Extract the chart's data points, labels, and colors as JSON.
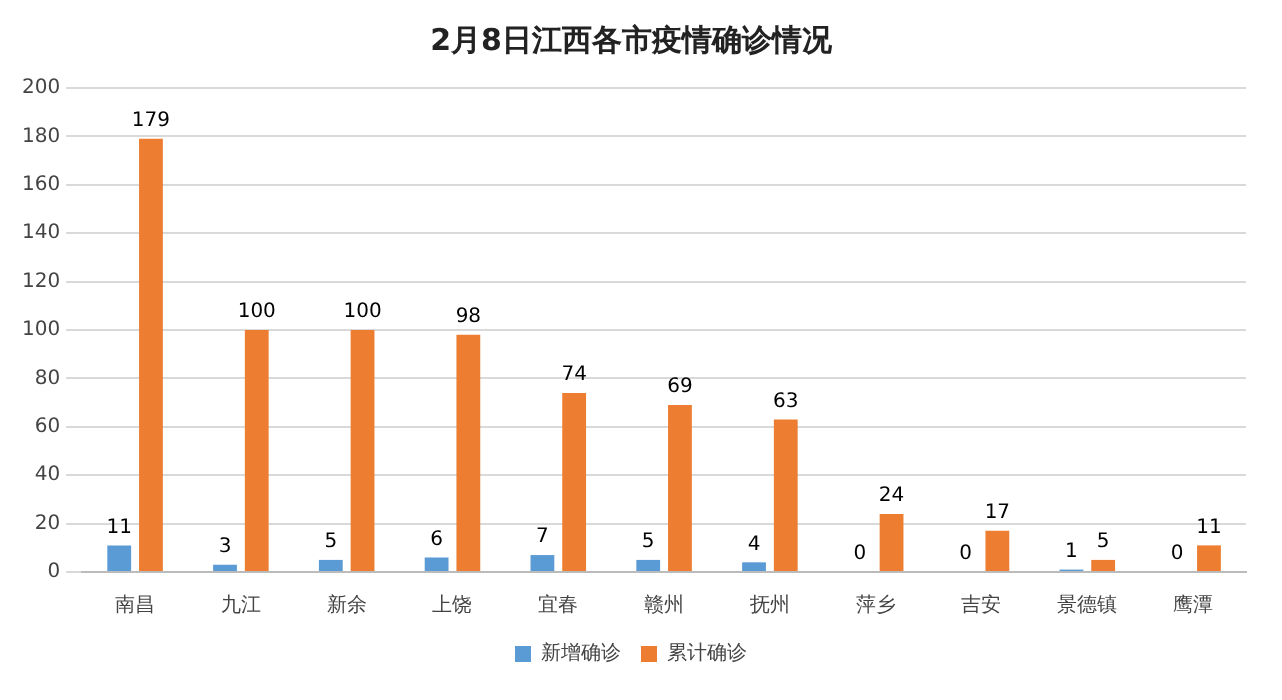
{
  "chart_data": {
    "type": "bar",
    "title": "2月8日江西各市疫情确诊情况",
    "categories": [
      "南昌",
      "九江",
      "新余",
      "上饶",
      "宜春",
      "赣州",
      "抚州",
      "萍乡",
      "吉安",
      "景德镇",
      "鹰潭"
    ],
    "series": [
      {
        "name": "新增确诊",
        "color": "#5b9bd5",
        "values": [
          11,
          3,
          5,
          6,
          7,
          5,
          4,
          0,
          0,
          1,
          0
        ]
      },
      {
        "name": "累计确诊",
        "color": "#ed7d31",
        "values": [
          179,
          100,
          100,
          98,
          74,
          69,
          63,
          24,
          17,
          5,
          11
        ]
      }
    ],
    "ylim": [
      0,
      200
    ],
    "yticks": [
      0,
      20,
      40,
      60,
      80,
      100,
      120,
      140,
      160,
      180,
      200
    ],
    "grid": "y",
    "legend": "bottom",
    "data_labels": true
  }
}
